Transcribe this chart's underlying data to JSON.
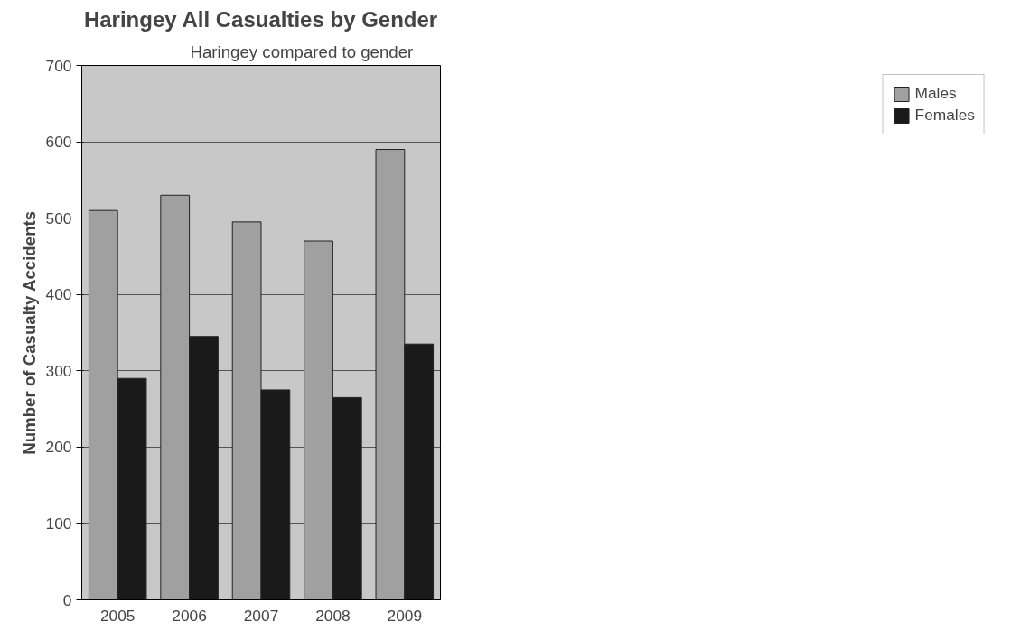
{
  "chart_data": {
    "type": "bar",
    "title": "Haringey All Casualties by Gender",
    "ylabel": "Number of Casualty Accidents",
    "annotations": [
      "Haringey compared to gender"
    ],
    "categories": [
      "2005",
      "2006",
      "2007",
      "2008",
      "2009"
    ],
    "series": [
      {
        "name": "Males",
        "color": "#a0a0a0",
        "values": [
          510,
          530,
          495,
          470,
          590
        ]
      },
      {
        "name": "Females",
        "color": "#1a1a1a",
        "values": [
          290,
          345,
          275,
          265,
          335
        ]
      }
    ],
    "ylim": [
      0,
      700
    ],
    "yticks": [
      0,
      100,
      200,
      300,
      400,
      500,
      600,
      700
    ],
    "grid": "y",
    "legend": "right"
  }
}
